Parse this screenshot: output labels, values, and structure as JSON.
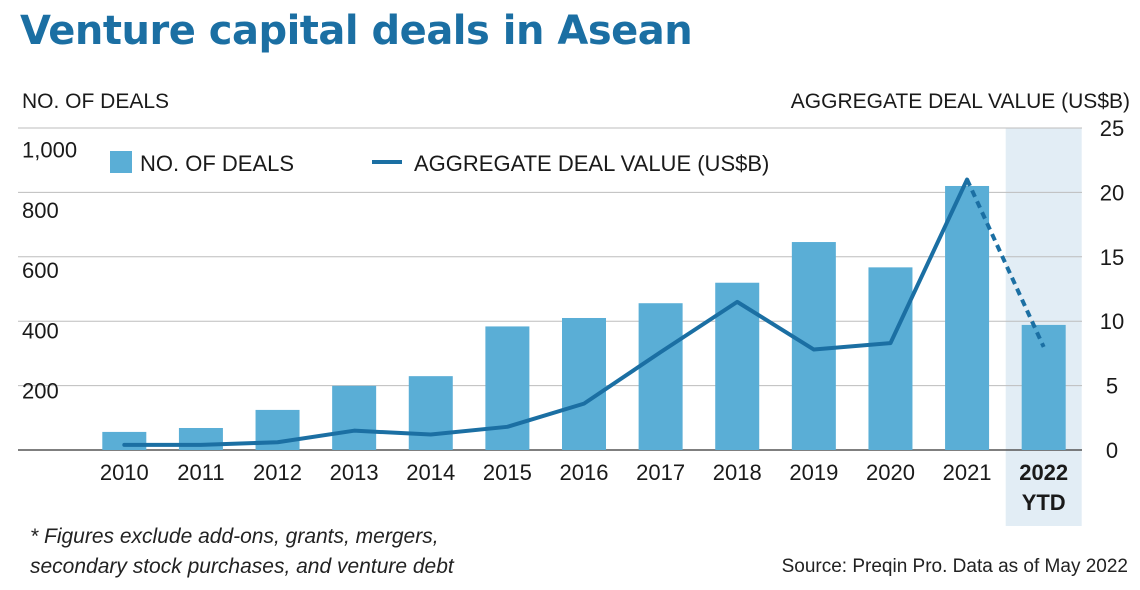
{
  "chart_data": {
    "type": "bar",
    "title": "Venture capital deals in Asean",
    "ylabel": "NO. OF DEALS",
    "y2label": "AGGREGATE DEAL VALUE (US$B)",
    "ylim": [
      0,
      1000
    ],
    "y_ticks": [
      "200",
      "400",
      "600",
      "800",
      "1,000"
    ],
    "y2lim": [
      0,
      25
    ],
    "y2_ticks": [
      "0",
      "5",
      "10",
      "15",
      "20",
      "25"
    ],
    "grid": true,
    "legend_placement": "top-left",
    "categories": [
      [
        "2010"
      ],
      [
        "2011"
      ],
      [
        "2012"
      ],
      [
        "2013"
      ],
      [
        "2014"
      ],
      [
        "2015"
      ],
      [
        "2016"
      ],
      [
        "2017"
      ],
      [
        "2018"
      ],
      [
        "2019"
      ],
      [
        "2020"
      ],
      [
        "2021"
      ],
      [
        "2022",
        "YTD"
      ]
    ],
    "highlight_category_index": 12,
    "series": [
      {
        "name": "NO. OF DEALS",
        "type": "bar",
        "axis": "left",
        "color": "#5aaed6",
        "values": [
          60,
          73,
          133,
          213,
          245,
          410,
          438,
          487,
          555,
          690,
          606,
          876,
          415
        ]
      },
      {
        "name": "AGGREGATE DEAL VALUE (US$B)",
        "type": "line",
        "axis": "right",
        "color": "#1b6fa3",
        "values": [
          0.4,
          0.4,
          0.6,
          1.5,
          1.2,
          1.8,
          3.6,
          7.6,
          11.5,
          7.8,
          8.3,
          21.0,
          8.0
        ],
        "dashed_from_index": 11
      }
    ]
  },
  "footnote": {
    "line1": "* Figures exclude add-ons, grants, mergers,",
    "line2": "secondary stock purchases, and venture debt"
  },
  "source": "Source: Preqin Pro. Data as of May 2022",
  "colors": {
    "title": "#1b6fa3",
    "highlight_band": "#e2edf5",
    "gridline": "#bdbdbd"
  }
}
